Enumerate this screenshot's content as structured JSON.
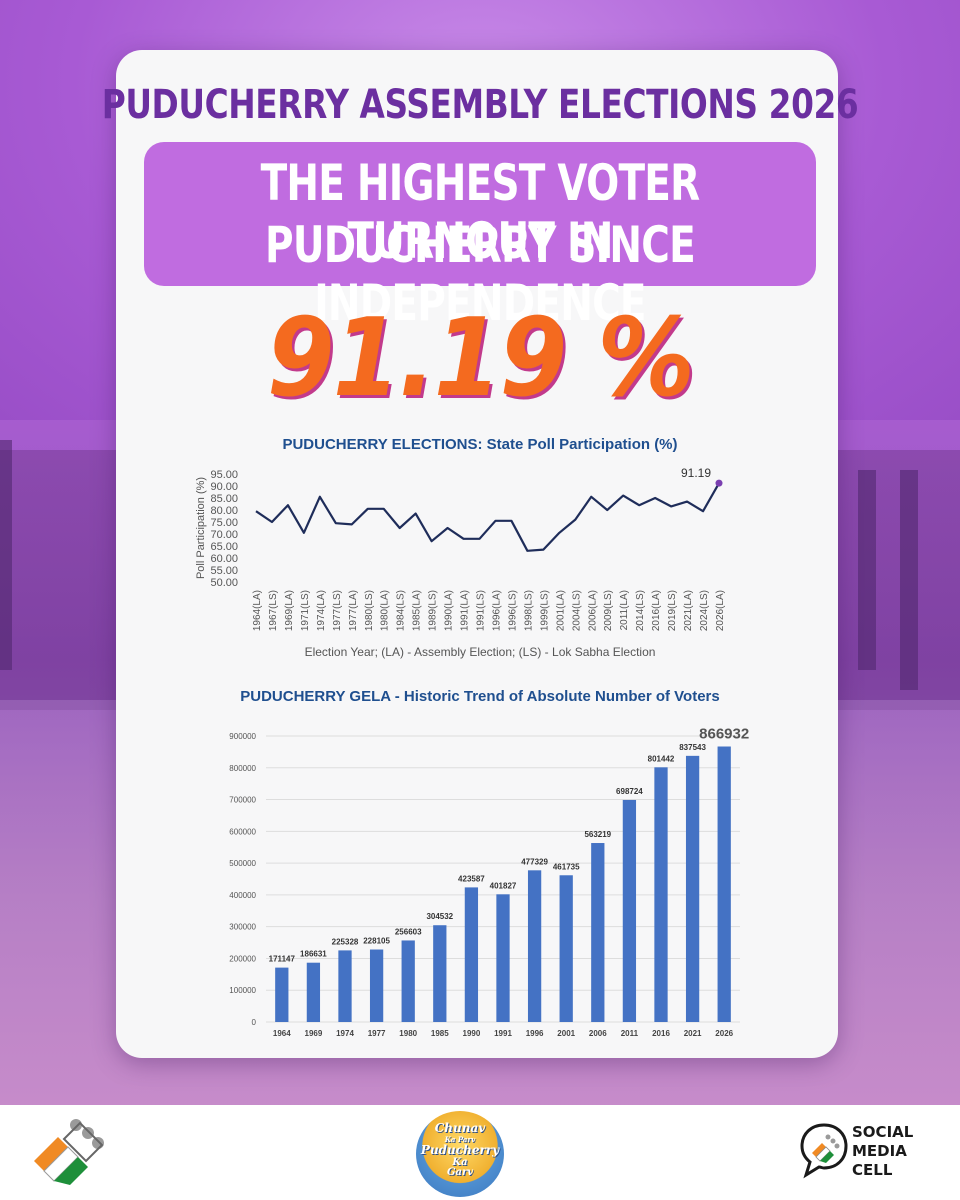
{
  "header": {
    "title": "PUDUCHERRY ASSEMBLY ELECTIONS 2026",
    "banner_line1": "THE  HIGHEST VOTER TURNOUT IN",
    "banner_line2": "PUDUCHERRY SINCE INDEPENDENCE",
    "turnout": "91.19 %"
  },
  "colors": {
    "title": "#6b2fa0",
    "banner": "#c06ce0",
    "turnout": "#f46a1f",
    "line": "#1f2d5a",
    "bar": "#4472c4",
    "chart_title": "#1f4f8f"
  },
  "chart_data": [
    {
      "type": "line",
      "title": "PUDUCHERRY ELECTIONS: State  Poll Participation (%)",
      "ylabel": "Poll Participation (%)",
      "xlabel": "Election Year; (LA)      - Assembly Election; (LS)      - Lok Sabha Election",
      "ylim": [
        50,
        95
      ],
      "yticks": [
        "50.00",
        "55.00",
        "60.00",
        "65.00",
        "70.00",
        "75.00",
        "80.00",
        "85.00",
        "90.00",
        "95.00"
      ],
      "grid": false,
      "x": [
        "1964(LA)",
        "1967(LS)",
        "1969(LA)",
        "1971(LS)",
        "1974(LA)",
        "1977(LS)",
        "1977(LA)",
        "1980(LS)",
        "1980(LA)",
        "1984(LS)",
        "1985(LA)",
        "1989(LS)",
        "1990(LA)",
        "1991(LA)",
        "1991(LS)",
        "1996(LA)",
        "1996(LS)",
        "1998(LS)",
        "1999(LS)",
        "2001(LA)",
        "2004(LS)",
        "2006(LA)",
        "2009(LS)",
        "2011(LA)",
        "2014(LS)",
        "2016(LA)",
        "2019(LS)",
        "2021(LA)",
        "2024(LS)",
        "2026(LA)"
      ],
      "series": [
        {
          "values": [
            79.5,
            75.0,
            82.0,
            70.5,
            85.5,
            74.5,
            74.0,
            80.5,
            80.5,
            72.5,
            78.5,
            67.0,
            72.5,
            68.0,
            68.0,
            75.5,
            75.5,
            63.0,
            63.5,
            70.5,
            76.0,
            85.5,
            80.0,
            86.0,
            82.0,
            85.0,
            81.5,
            83.5,
            79.5,
            91.19
          ]
        }
      ],
      "annotation": "91.19"
    },
    {
      "type": "bar",
      "title": "PUDUCHERRY GELA -  Historic Trend of Absolute Number of Voters",
      "categories": [
        "1964",
        "1969",
        "1974",
        "1977",
        "1980",
        "1985",
        "1990",
        "1991",
        "1996",
        "2001",
        "2006",
        "2011",
        "2016",
        "2021",
        "2026"
      ],
      "values": [
        171147,
        186631,
        225328,
        228105,
        256603,
        304532,
        423587,
        401827,
        477329,
        461735,
        563219,
        698724,
        801442,
        837543,
        866932
      ],
      "ylim": [
        0,
        900000
      ],
      "yticks": [
        "0",
        "100000",
        "200000",
        "300000",
        "400000",
        "500000",
        "600000",
        "700000",
        "800000",
        "900000"
      ],
      "grid": true
    }
  ],
  "footer": {
    "badge_line1": "Chunav",
    "badge_line2": "Ka Parv",
    "badge_line3": "Puducherry",
    "badge_line4": "Ka",
    "badge_line5": "Garv",
    "right_line1": "SOCIAL",
    "right_line2": "MEDIA",
    "right_line3": "CELL"
  }
}
